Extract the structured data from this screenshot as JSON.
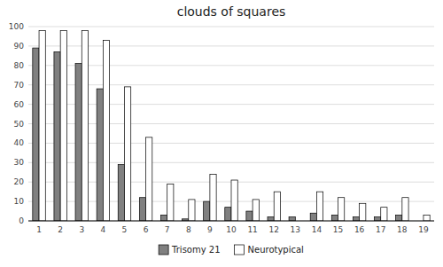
{
  "chart_data": {
    "type": "bar",
    "title": "clouds of squares",
    "categories": [
      1,
      2,
      3,
      4,
      5,
      6,
      7,
      8,
      9,
      10,
      11,
      12,
      13,
      14,
      15,
      16,
      17,
      18,
      19
    ],
    "series": [
      {
        "name": "Trisomy 21",
        "color": "#808080",
        "values": [
          89,
          87,
          81,
          68,
          29,
          12,
          3,
          1,
          10,
          7,
          5,
          2,
          2,
          4,
          3,
          2,
          2,
          3,
          0
        ]
      },
      {
        "name": "Neurotypical",
        "color": "#ffffff",
        "values": [
          98,
          98,
          98,
          93,
          69,
          43,
          19,
          11,
          24,
          21,
          11,
          15,
          0,
          15,
          12,
          9,
          7,
          12,
          3
        ]
      }
    ],
    "ylim": [
      0,
      100
    ],
    "yticks": [
      0,
      10,
      20,
      30,
      40,
      50,
      60,
      70,
      80,
      90,
      100
    ],
    "grid": true,
    "legend": "bottom"
  }
}
